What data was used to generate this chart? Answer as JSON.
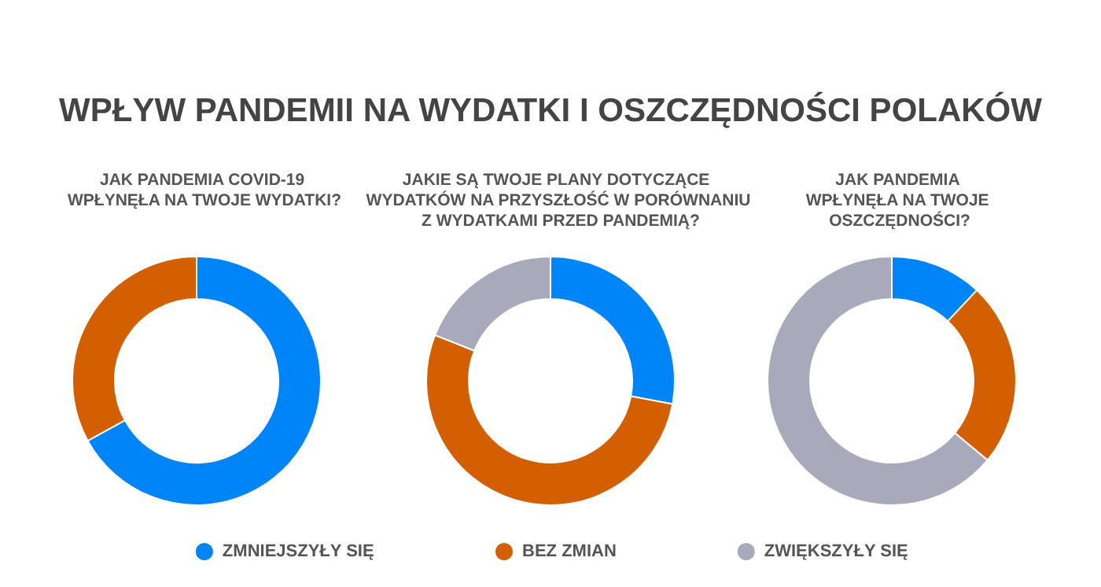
{
  "chart_data": [
    {
      "type": "donut",
      "title": "WPŁYW PANDEMII NA WYDATKI I OSZCZĘDNOŚCI POLAKÓW",
      "subtitle": "JAK PANDEMIA COVID-19 WPŁYNĘŁA NA TWOJE WYDATKI?",
      "categories": [
        "ZMNIEJSZYŁY SIĘ",
        "BEZ ZMIAN",
        "ZWIĘKSZYŁY SIĘ"
      ],
      "values": [
        67,
        33,
        0
      ],
      "colors": [
        "#0085f8",
        "#d35f00",
        "#a8aabb"
      ],
      "legend": "bottom"
    },
    {
      "type": "donut",
      "subtitle": "JAKIE SĄ TWOJE PLANY DOTYCZĄCE WYDATKÓW NA PRZYSZŁOŚĆ W PORÓWNANIU Z WYDATKAMI PRZED PANDEMIĄ?",
      "categories": [
        null,
        null,
        null
      ],
      "values": [
        28,
        53,
        19
      ],
      "colors": [
        "#0085f8",
        "#d35f00",
        "#a8aabb"
      ]
    },
    {
      "type": "donut",
      "subtitle": "JAK PANDEMIA WPŁYNĘŁA NA TWOJE OSZCZĘDNOŚCI?",
      "categories": [
        null,
        null,
        null
      ],
      "values": [
        12,
        24,
        64
      ],
      "colors": [
        "#0085f8",
        "#d35f00",
        "#a8aabb"
      ]
    }
  ]
}
